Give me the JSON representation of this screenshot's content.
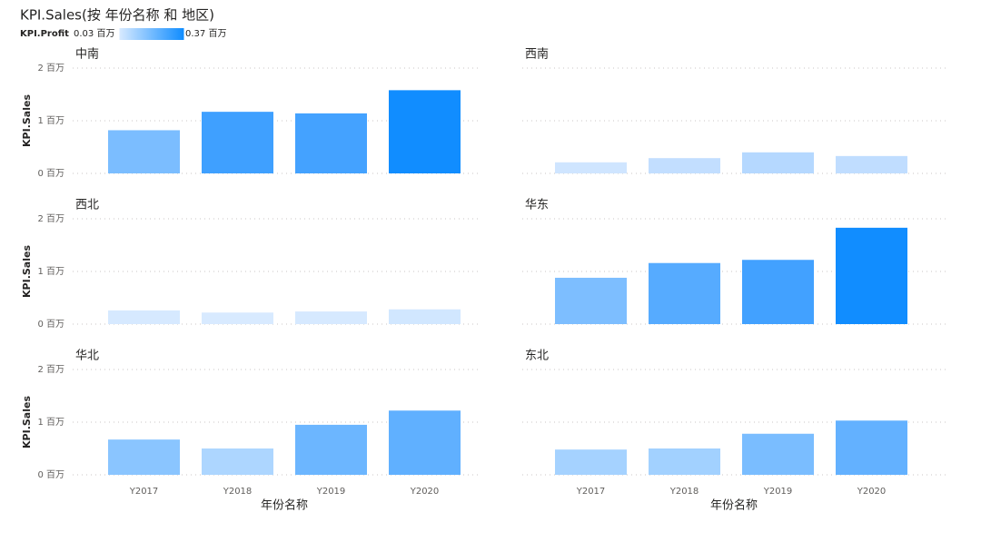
{
  "title": "KPI.Sales(按 年份名称 和 地区)",
  "color_legend": {
    "label": "KPI.Profit",
    "min": {
      "value": 0.03,
      "label": "0.03 百万"
    },
    "max": {
      "value": 0.37,
      "label": "0.37 百万"
    },
    "colors": [
      "#d6e9ff",
      "#118dff"
    ]
  },
  "chart_data": [
    {
      "type": "bar",
      "title": "中南",
      "ylabel": "KPI.Sales",
      "categories": [
        null,
        null,
        null,
        null
      ],
      "values": [
        0.82,
        1.17,
        1.14,
        1.58
      ],
      "colors": [
        "#7bbdff",
        "#3fa0ff",
        "#44a2ff",
        "#118dff"
      ],
      "ylim": [
        0,
        2
      ],
      "yticks": [
        {
          "value": 0,
          "label": "0 百万"
        },
        {
          "value": 1,
          "label": "1 百万"
        },
        {
          "value": 2,
          "label": "2 百万"
        }
      ],
      "grid": true
    },
    {
      "type": "bar",
      "title": "西南",
      "categories": [
        null,
        null,
        null,
        null
      ],
      "values": [
        0.21,
        0.29,
        0.4,
        0.33
      ],
      "colors": [
        "#cfe5ff",
        "#c2deff",
        "#b5d8ff",
        "#c0ddff"
      ],
      "ylim": [
        0,
        2
      ],
      "yticks": [
        0,
        1,
        2
      ],
      "show_tick_labels": false,
      "grid": true
    },
    {
      "type": "bar",
      "title": "西北",
      "ylabel": "KPI.Sales",
      "categories": [
        null,
        null,
        null,
        null
      ],
      "values": [
        0.26,
        0.22,
        0.24,
        0.28
      ],
      "colors": [
        "#d6e9ff",
        "#d8eaff",
        "#d6e9ff",
        "#d1e7ff"
      ],
      "ylim": [
        0,
        2
      ],
      "yticks": [
        {
          "value": 0,
          "label": "0 百万"
        },
        {
          "value": 1,
          "label": "1 百万"
        },
        {
          "value": 2,
          "label": "2 百万"
        }
      ],
      "grid": true
    },
    {
      "type": "bar",
      "title": "华东",
      "categories": [
        null,
        null,
        null,
        null
      ],
      "values": [
        0.88,
        1.16,
        1.22,
        1.83
      ],
      "colors": [
        "#7dbeff",
        "#56abff",
        "#42a1ff",
        "#118dff"
      ],
      "ylim": [
        0,
        2
      ],
      "yticks": [
        0,
        1,
        2
      ],
      "show_tick_labels": false,
      "grid": true
    },
    {
      "type": "bar",
      "title": "华北",
      "ylabel": "KPI.Sales",
      "xlabel": "年份名称",
      "categories": [
        "Y2017",
        "Y2018",
        "Y2019",
        "Y2020"
      ],
      "values": [
        0.67,
        0.5,
        0.95,
        1.22
      ],
      "colors": [
        "#8ac5ff",
        "#add6ff",
        "#6cb6ff",
        "#60b0ff"
      ],
      "ylim": [
        0,
        2
      ],
      "yticks": [
        {
          "value": 0,
          "label": "0 百万"
        },
        {
          "value": 1,
          "label": "1 百万"
        },
        {
          "value": 2,
          "label": "2 百万"
        }
      ],
      "grid": true
    },
    {
      "type": "bar",
      "title": "东北",
      "xlabel": "年份名称",
      "categories": [
        "Y2017",
        "Y2018",
        "Y2019",
        "Y2020"
      ],
      "values": [
        0.48,
        0.5,
        0.78,
        1.03
      ],
      "colors": [
        "#a5d2ff",
        "#a2d1ff",
        "#7abdff",
        "#63b1ff"
      ],
      "ylim": [
        0,
        2
      ],
      "yticks": [
        0,
        1,
        2
      ],
      "show_tick_labels": false,
      "grid": true
    }
  ]
}
